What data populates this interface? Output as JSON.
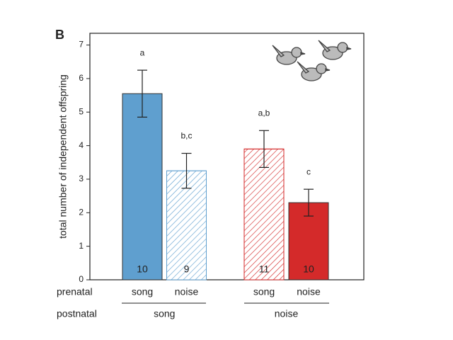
{
  "chart_data": {
    "type": "bar",
    "panel_label": "B",
    "y_label": "total number of independent offspring",
    "row_labels": [
      "prenatal",
      "postnatal"
    ],
    "categories": [
      "song",
      "noise",
      "song",
      "noise"
    ],
    "groups": [
      "song",
      "noise"
    ],
    "values": [
      5.55,
      3.25,
      3.9,
      2.3
    ],
    "errors": [
      0.7,
      0.52,
      0.55,
      0.4
    ],
    "colors": [
      "#5f9fcf",
      "#5f9fcf",
      "#d42a2a",
      "#d42a2a"
    ],
    "fills": [
      "solid",
      "hatched",
      "hatched",
      "solid"
    ],
    "annotations": [
      "a",
      "b,c",
      "a,b",
      "c"
    ],
    "sample_sizes": [
      10,
      9,
      11,
      10
    ],
    "ylim": [
      0,
      7.35
    ],
    "yticks": [
      0,
      1,
      2,
      3,
      4,
      5,
      6,
      7
    ],
    "grid": false
  }
}
